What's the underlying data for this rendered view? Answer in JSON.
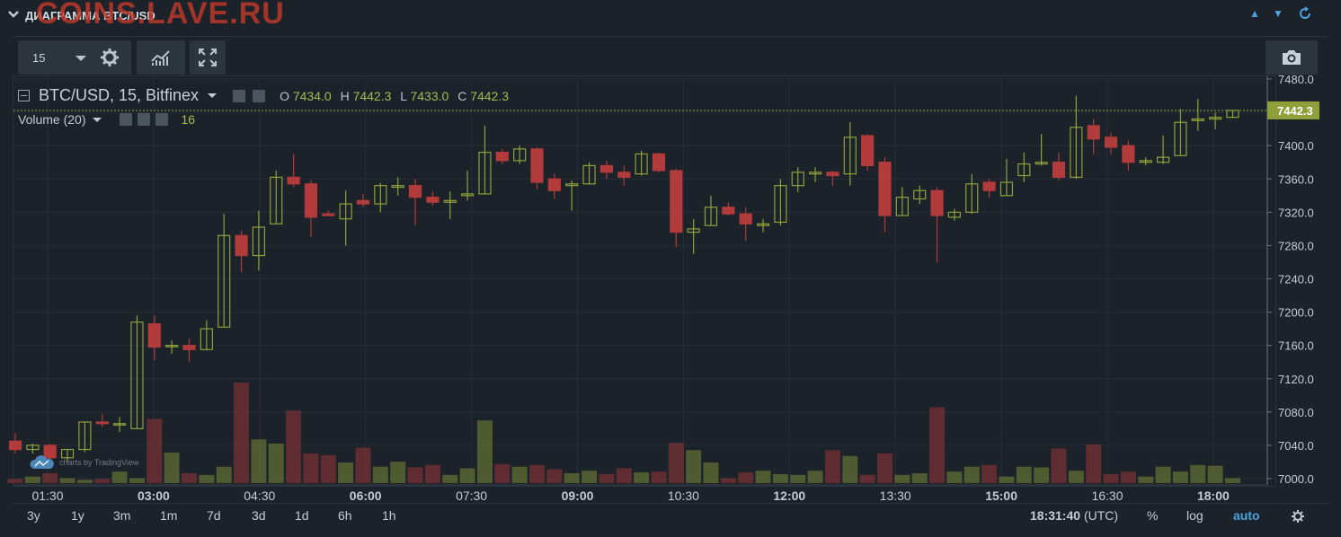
{
  "watermark": "COINS.LAVE.RU",
  "panel": {
    "title": "ДИАГРАММА BTC/USD"
  },
  "toolbar": {
    "interval": "15"
  },
  "legend": {
    "symbol": "BTC/USD, 15, Bitfinex",
    "o_label": "O",
    "o": "7434.0",
    "h_label": "H",
    "h": "7442.3",
    "l_label": "L",
    "l": "7433.0",
    "c_label": "C",
    "c": "7442.3",
    "volume_label": "Volume (20)",
    "volume_value": "16"
  },
  "attribution": "charts by TradingView",
  "bottom": {
    "ranges": [
      "3y",
      "1y",
      "3m",
      "1m",
      "7d",
      "3d",
      "1d",
      "6h",
      "1h"
    ],
    "time": "18:31:40",
    "tz": "(UTC)",
    "pct": "%",
    "log": "log",
    "auto": "auto"
  },
  "colors": {
    "up": "#8fa03a",
    "down": "#b23b3b",
    "price_line": "#8fa03a",
    "auto": "#4aa3df"
  },
  "chart_data": {
    "type": "candlestick",
    "title": "BTC/USD, 15, Bitfinex",
    "ylim": [
      7000,
      7480
    ],
    "y_ticks": [
      "7480.0",
      "7440.0",
      "7400.0",
      "7360.0",
      "7320.0",
      "7280.0",
      "7240.0",
      "7200.0",
      "7160.0",
      "7120.0",
      "7080.0",
      "7040.0",
      "7000.0"
    ],
    "x_ticks": [
      "01:30",
      "03:00",
      "04:30",
      "06:00",
      "07:30",
      "09:00",
      "10:30",
      "12:00",
      "13:30",
      "15:00",
      "16:30",
      "18:00"
    ],
    "last_price": "7442.3",
    "candles": [
      [
        7045,
        7055,
        7030,
        7035
      ],
      [
        7035,
        7042,
        7030,
        7040
      ],
      [
        7040,
        7042,
        7020,
        7025
      ],
      [
        7025,
        7035,
        7020,
        7035
      ],
      [
        7035,
        7068,
        7032,
        7068
      ],
      [
        7068,
        7078,
        7062,
        7066
      ],
      [
        7066,
        7074,
        7056,
        7066
      ],
      [
        7060,
        7196,
        7060,
        7188
      ],
      [
        7186,
        7196,
        7142,
        7158
      ],
      [
        7160,
        7166,
        7150,
        7160
      ],
      [
        7160,
        7168,
        7140,
        7155
      ],
      [
        7155,
        7190,
        7155,
        7180
      ],
      [
        7182,
        7318,
        7182,
        7292
      ],
      [
        7292,
        7298,
        7248,
        7268
      ],
      [
        7268,
        7322,
        7250,
        7302
      ],
      [
        7306,
        7370,
        7306,
        7362
      ],
      [
        7362,
        7390,
        7350,
        7354
      ],
      [
        7354,
        7358,
        7290,
        7314
      ],
      [
        7318,
        7322,
        7316,
        7316
      ],
      [
        7312,
        7346,
        7280,
        7330
      ],
      [
        7334,
        7342,
        7326,
        7330
      ],
      [
        7330,
        7355,
        7320,
        7352
      ],
      [
        7350,
        7362,
        7340,
        7352
      ],
      [
        7352,
        7360,
        7304,
        7338
      ],
      [
        7338,
        7345,
        7328,
        7332
      ],
      [
        7332,
        7345,
        7312,
        7334
      ],
      [
        7340,
        7370,
        7334,
        7342
      ],
      [
        7342,
        7424,
        7342,
        7392
      ],
      [
        7392,
        7396,
        7378,
        7382
      ],
      [
        7382,
        7400,
        7378,
        7396
      ],
      [
        7396,
        7398,
        7348,
        7356
      ],
      [
        7360,
        7366,
        7336,
        7346
      ],
      [
        7352,
        7358,
        7322,
        7354
      ],
      [
        7354,
        7380,
        7354,
        7376
      ],
      [
        7376,
        7382,
        7360,
        7368
      ],
      [
        7368,
        7376,
        7352,
        7362
      ],
      [
        7366,
        7394,
        7364,
        7390
      ],
      [
        7390,
        7392,
        7368,
        7370
      ],
      [
        7370,
        7372,
        7278,
        7296
      ],
      [
        7296,
        7312,
        7270,
        7300
      ],
      [
        7304,
        7340,
        7304,
        7326
      ],
      [
        7326,
        7332,
        7316,
        7318
      ],
      [
        7318,
        7326,
        7286,
        7306
      ],
      [
        7304,
        7312,
        7296,
        7306
      ],
      [
        7308,
        7360,
        7304,
        7352
      ],
      [
        7352,
        7374,
        7344,
        7368
      ],
      [
        7366,
        7374,
        7356,
        7368
      ],
      [
        7368,
        7370,
        7352,
        7364
      ],
      [
        7366,
        7428,
        7352,
        7410
      ],
      [
        7412,
        7414,
        7370,
        7376
      ],
      [
        7380,
        7386,
        7296,
        7316
      ],
      [
        7316,
        7350,
        7316,
        7338
      ],
      [
        7336,
        7352,
        7330,
        7346
      ],
      [
        7346,
        7350,
        7260,
        7316
      ],
      [
        7314,
        7324,
        7310,
        7320
      ],
      [
        7320,
        7366,
        7318,
        7354
      ],
      [
        7356,
        7360,
        7338,
        7346
      ],
      [
        7340,
        7384,
        7340,
        7356
      ],
      [
        7364,
        7392,
        7356,
        7378
      ],
      [
        7378,
        7414,
        7376,
        7380
      ],
      [
        7380,
        7392,
        7358,
        7362
      ],
      [
        7362,
        7460,
        7360,
        7422
      ],
      [
        7424,
        7432,
        7390,
        7408
      ],
      [
        7410,
        7416,
        7390,
        7398
      ],
      [
        7400,
        7406,
        7370,
        7380
      ],
      [
        7380,
        7386,
        7376,
        7382
      ],
      [
        7380,
        7412,
        7378,
        7386
      ],
      [
        7388,
        7444,
        7388,
        7428
      ],
      [
        7430,
        7456,
        7418,
        7432
      ],
      [
        7432,
        7440,
        7420,
        7434
      ],
      [
        7434,
        7442.3,
        7433,
        7442.3
      ]
    ],
    "volumes": [
      5,
      8,
      12,
      6,
      4,
      5,
      14,
      6,
      78,
      37,
      12,
      10,
      20,
      122,
      53,
      48,
      88,
      36,
      34,
      25,
      43,
      20,
      26,
      19,
      22,
      10,
      18,
      76,
      23,
      20,
      22,
      17,
      12,
      15,
      11,
      18,
      13,
      14,
      49,
      40,
      25,
      6,
      13,
      15,
      11,
      10,
      15,
      40,
      33,
      10,
      36,
      10,
      12,
      92,
      14,
      20,
      22,
      8,
      20,
      19,
      42,
      15,
      47,
      11,
      14,
      8,
      20,
      14,
      22,
      21,
      6
    ]
  }
}
